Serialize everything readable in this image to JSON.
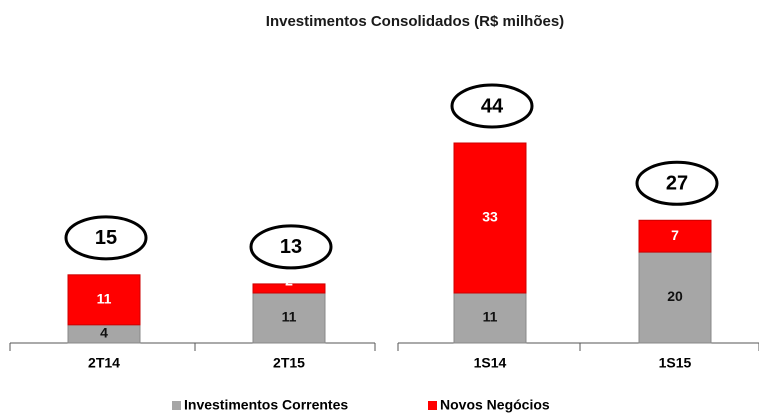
{
  "chart_data": {
    "type": "stacked_bar",
    "title": "Investimentos Consolidados (R$ milhões)",
    "categories": [
      "2T14",
      "2T15",
      "1S14",
      "1S15"
    ],
    "series": [
      {
        "name": "Investimentos Correntes",
        "color": "#a6a6a6",
        "values": [
          4,
          11,
          11,
          20
        ]
      },
      {
        "name": "Novos Negócios",
        "color": "#ff0000",
        "values": [
          11,
          2,
          33,
          7
        ]
      }
    ],
    "totals": [
      15,
      13,
      44,
      27
    ]
  }
}
